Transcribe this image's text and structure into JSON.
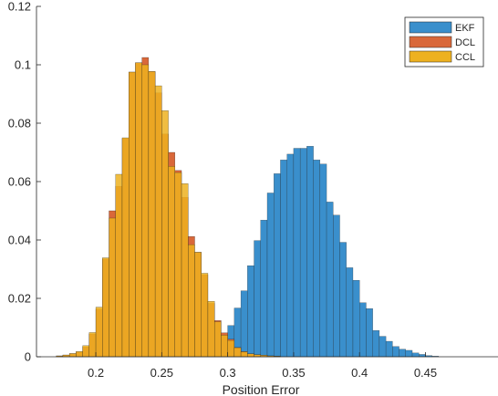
{
  "chart_data": {
    "type": "histogram",
    "title": "",
    "xlabel": "Position Error",
    "ylabel": "",
    "xlim": [
      0.155,
      0.505
    ],
    "ylim": [
      0,
      0.12
    ],
    "xticks": [
      0.2,
      0.25,
      0.3,
      0.35,
      0.4,
      0.45
    ],
    "xtick_labels": [
      "0.2",
      "0.25",
      "0.3",
      "0.35",
      "0.4",
      "0.45"
    ],
    "yticks": [
      0,
      0.02,
      0.04,
      0.06,
      0.08,
      0.1,
      0.12
    ],
    "ytick_labels": [
      "0",
      "0.02",
      "0.04",
      "0.06",
      "0.08",
      "0.1",
      "0.12"
    ],
    "grid": false,
    "legend_position": "top-right",
    "bin_width": 0.005,
    "series": [
      {
        "name": "EKF",
        "color": "#3A8FCC",
        "bin_start": 0.27,
        "values": [
          0.0002,
          0.0004,
          0.0006,
          0.0028,
          0.0043,
          0.0072,
          0.0107,
          0.0167,
          0.0226,
          0.0312,
          0.0398,
          0.0468,
          0.0561,
          0.0627,
          0.0674,
          0.0694,
          0.0714,
          0.0714,
          0.0721,
          0.0674,
          0.066,
          0.053,
          0.0485,
          0.0392,
          0.0305,
          0.0262,
          0.0185,
          0.0165,
          0.009,
          0.007,
          0.0053,
          0.0035,
          0.0026,
          0.0022,
          0.0013,
          0.0008,
          0.0004,
          0.0002
        ]
      },
      {
        "name": "DCL",
        "color": "#D9683A",
        "bin_start": 0.17,
        "values": [
          0.0003,
          0.0006,
          0.0011,
          0.0017,
          0.0034,
          0.0078,
          0.0163,
          0.0335,
          0.05,
          0.0584,
          0.0748,
          0.0975,
          0.1007,
          0.1025,
          0.0977,
          0.0904,
          0.0763,
          0.07,
          0.0638,
          0.0546,
          0.0412,
          0.0358,
          0.0281,
          0.0183,
          0.0124,
          0.0082,
          0.006,
          0.0032,
          0.0018,
          0.001,
          0.0007,
          0.0005,
          0.0003,
          0.0002
        ]
      },
      {
        "name": "CCL",
        "color": "#EDB120",
        "bin_start": 0.17,
        "values": [
          0.0003,
          0.0006,
          0.0011,
          0.0018,
          0.0038,
          0.0083,
          0.017,
          0.0339,
          0.0475,
          0.0625,
          0.075,
          0.0975,
          0.1007,
          0.1,
          0.0977,
          0.0928,
          0.0843,
          0.0652,
          0.0631,
          0.0593,
          0.0384,
          0.0358,
          0.0286,
          0.019,
          0.012,
          0.0074,
          0.0056,
          0.0031,
          0.0017,
          0.001,
          0.0007,
          0.0005,
          0.0003,
          0.0002
        ]
      }
    ]
  }
}
